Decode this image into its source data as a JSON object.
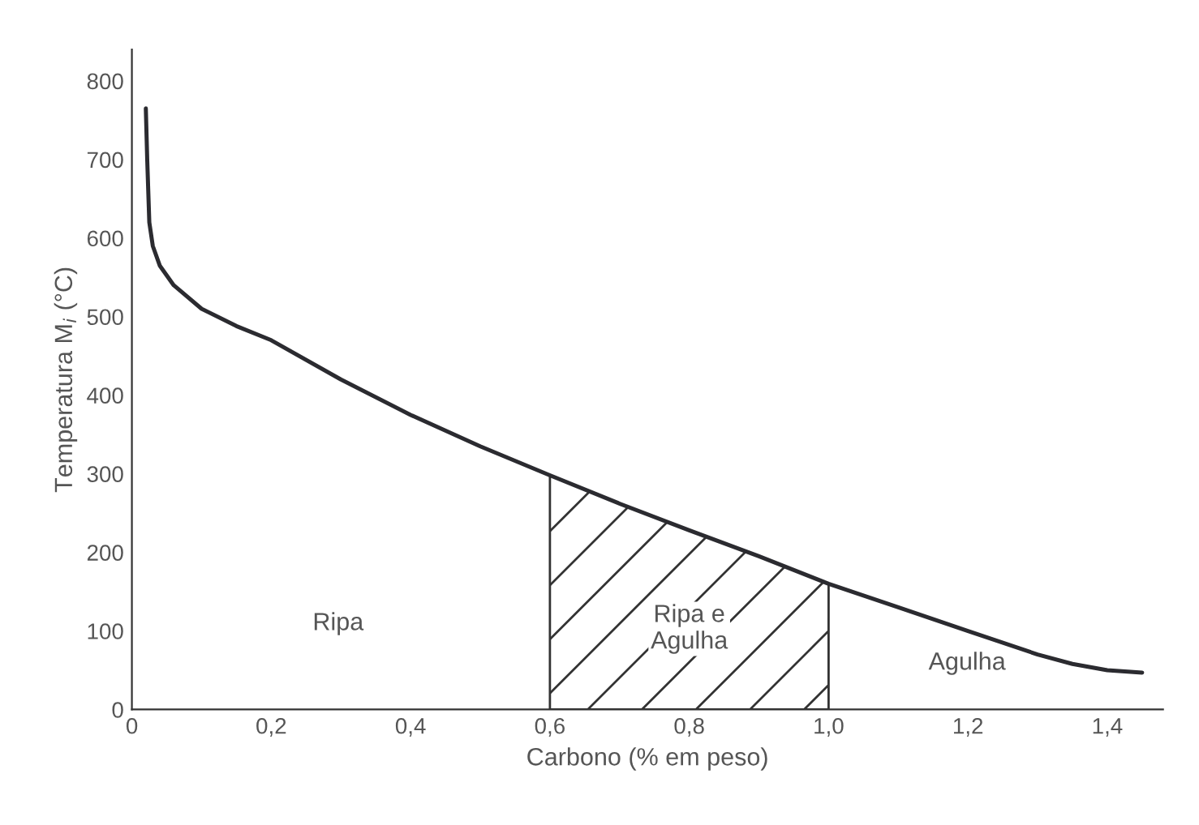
{
  "chart_data": {
    "type": "line",
    "xlabel": "Carbono (% em peso)",
    "ylabel": "Temperatura M$_{i}$ (°C)",
    "x": [
      0.02,
      0.022,
      0.025,
      0.03,
      0.04,
      0.06,
      0.1,
      0.15,
      0.2,
      0.3,
      0.4,
      0.5,
      0.6,
      0.7,
      0.8,
      0.9,
      1.0,
      1.1,
      1.2,
      1.3,
      1.35,
      1.4,
      1.45
    ],
    "series": [
      {
        "color": "#2b2b30",
        "values": [
          765,
          700,
          620,
          590,
          565,
          540,
          510,
          488,
          470,
          420,
          375,
          335,
          298,
          262,
          228,
          195,
          160,
          130,
          100,
          70,
          58,
          50,
          47
        ]
      },
      {
        "type": "area",
        "name": "Ripa e\nAgulha",
        "color": "#333333",
        "x": [
          0.6,
          0.7,
          0.8,
          0.9,
          1.0
        ],
        "values": [
          298,
          262,
          228,
          195,
          160
        ]
      }
    ],
    "xlim": [
      0,
      1.48
    ],
    "ylim": [
      0,
      840
    ],
    "xticks": [
      {
        "value": 0,
        "label": "0"
      },
      {
        "value": 0.2,
        "label": "0,2"
      },
      {
        "value": 0.4,
        "label": "0,4"
      },
      {
        "value": 0.6,
        "label": "0,6"
      },
      {
        "value": 0.8,
        "label": "0,8"
      },
      {
        "value": 1.0,
        "label": "1,0"
      },
      {
        "value": 1.2,
        "label": "1,2"
      },
      {
        "value": 1.4,
        "label": "1,4"
      }
    ],
    "yticks": [
      0,
      100,
      200,
      300,
      400,
      500,
      600,
      700,
      800
    ],
    "annotations": [
      "Ripa",
      "Agulha"
    ],
    "grid": false,
    "legend": false,
    "marker": "none",
    "line_style": "solid"
  }
}
